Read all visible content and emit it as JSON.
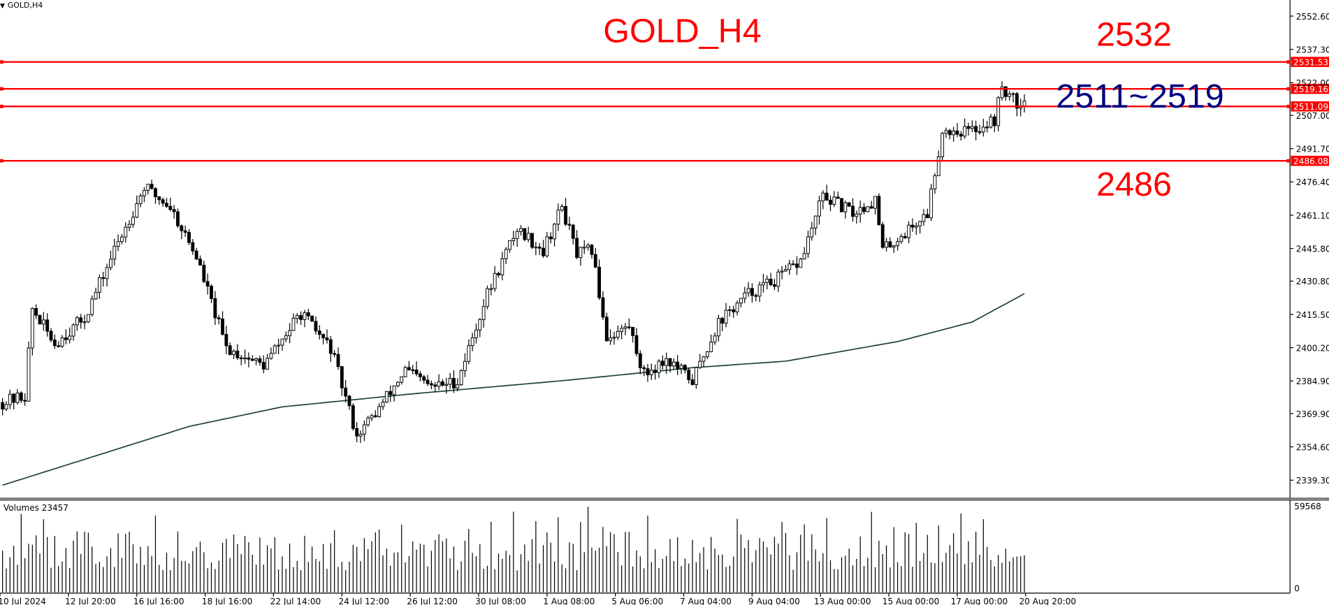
{
  "window": {
    "symbol_label": "GOLD,H4"
  },
  "volume_panel": {
    "label": "Volumes 23457",
    "max_label": "59568",
    "zero_label": "0"
  },
  "colors": {
    "bull_body": "#ffffff",
    "bear_body": "#000000",
    "wick": "#000000",
    "ma": "#1f3f3f",
    "level": "#ff0000",
    "range_text": "#00007f",
    "level_text": "#ff0000",
    "axis": "#000000"
  },
  "annotations": {
    "title": "GOLD_H4",
    "top_level": "2532",
    "range": "2511~2519",
    "bottom_level": "2486"
  },
  "chart_data": {
    "type": "candlestick",
    "title": "GOLD_H4",
    "symbol": "GOLD",
    "timeframe": "H4",
    "ylim": [
      2331,
      2560
    ],
    "y_ticks": [
      "2552.60",
      "2537.30",
      "2522.00",
      "2507.00",
      "2491.70",
      "2476.40",
      "2461.10",
      "2445.80",
      "2430.80",
      "2415.50",
      "2400.20",
      "2384.90",
      "2369.90",
      "2354.60",
      "2339.30"
    ],
    "x_ticks": [
      "10 Jul 2024",
      "12 Jul 20:00",
      "16 Jul 16:00",
      "18 Jul 16:00",
      "22 Jul 14:00",
      "24 Jul 12:00",
      "26 Jul 12:00",
      "30 Jul 08:00",
      "1 Aug 08:00",
      "5 Aug 06:00",
      "7 Aug 04:00",
      "9 Aug 04:00",
      "13 Aug 00:00",
      "15 Aug 00:00",
      "17 Aug 00:00",
      "20 Aug 20:00"
    ],
    "levels": [
      {
        "label": "2531.53",
        "value": 2531.53
      },
      {
        "label": "2519.16",
        "value": 2519.16
      },
      {
        "label": "2511.09",
        "value": 2511.09
      },
      {
        "label": "2486.08",
        "value": 2486.08
      }
    ],
    "price_waypoints": [
      [
        0,
        2375
      ],
      [
        6,
        2378
      ],
      [
        8,
        2418
      ],
      [
        14,
        2402
      ],
      [
        22,
        2414
      ],
      [
        30,
        2445
      ],
      [
        38,
        2474
      ],
      [
        45,
        2465
      ],
      [
        52,
        2442
      ],
      [
        60,
        2400
      ],
      [
        70,
        2392
      ],
      [
        80,
        2416
      ],
      [
        88,
        2400
      ],
      [
        95,
        2360
      ],
      [
        100,
        2370
      ],
      [
        108,
        2390
      ],
      [
        115,
        2382
      ],
      [
        122,
        2385
      ],
      [
        130,
        2425
      ],
      [
        138,
        2455
      ],
      [
        145,
        2445
      ],
      [
        150,
        2465
      ],
      [
        154,
        2443
      ],
      [
        158,
        2445
      ],
      [
        162,
        2405
      ],
      [
        168,
        2410
      ],
      [
        172,
        2388
      ],
      [
        178,
        2395
      ],
      [
        185,
        2385
      ],
      [
        192,
        2412
      ],
      [
        200,
        2425
      ],
      [
        208,
        2432
      ],
      [
        214,
        2440
      ],
      [
        220,
        2470
      ],
      [
        228,
        2462
      ],
      [
        234,
        2468
      ],
      [
        236,
        2445
      ],
      [
        242,
        2453
      ],
      [
        248,
        2462
      ],
      [
        252,
        2500
      ],
      [
        260,
        2500
      ],
      [
        266,
        2505
      ],
      [
        268,
        2520
      ],
      [
        272,
        2512
      ],
      [
        274,
        2516
      ]
    ],
    "ma_waypoints": [
      [
        0,
        2337
      ],
      [
        50,
        2364
      ],
      [
        75,
        2373
      ],
      [
        110,
        2379
      ],
      [
        150,
        2385
      ],
      [
        185,
        2391
      ],
      [
        210,
        2394
      ],
      [
        240,
        2403
      ],
      [
        260,
        2412
      ],
      [
        274,
        2425
      ]
    ],
    "candle_count": 275,
    "volume_max": 59568
  }
}
